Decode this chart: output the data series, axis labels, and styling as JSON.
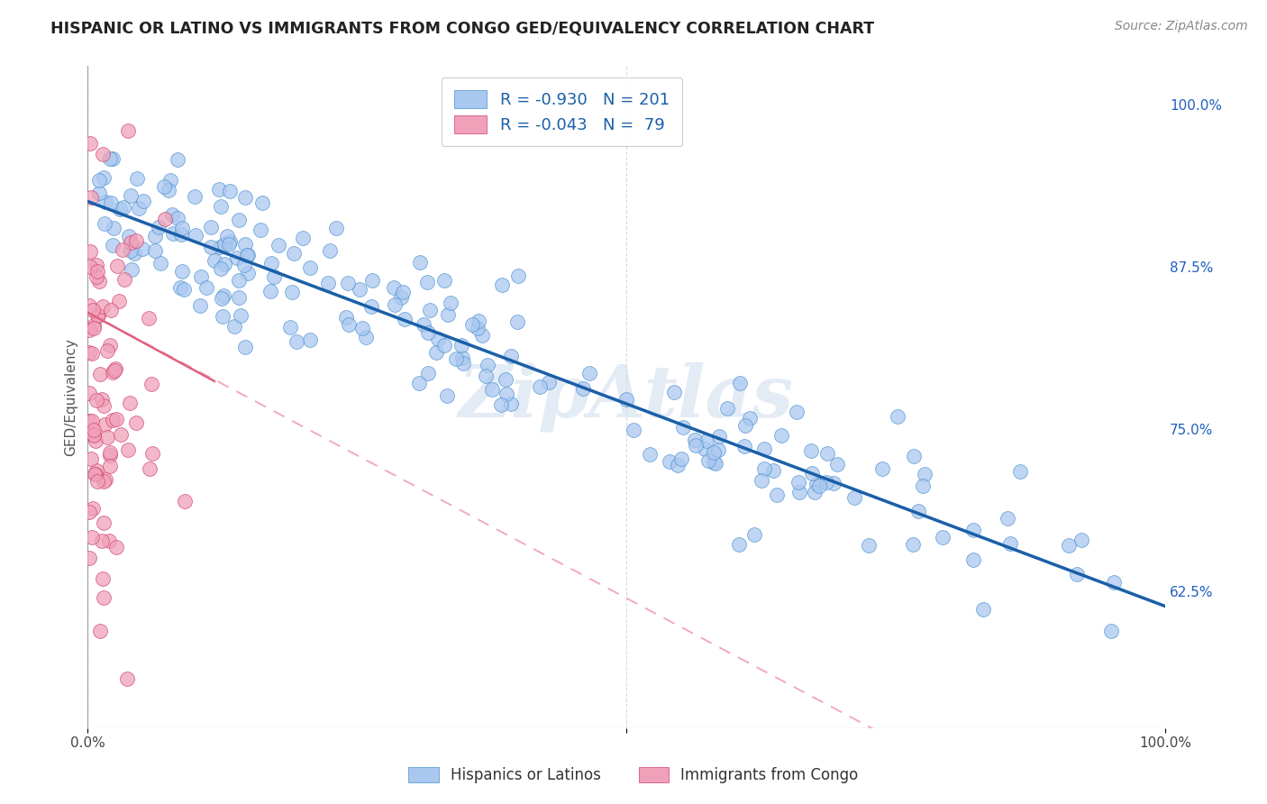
{
  "title": "HISPANIC OR LATINO VS IMMIGRANTS FROM CONGO GED/EQUIVALENCY CORRELATION CHART",
  "source": "Source: ZipAtlas.com",
  "ylabel": "GED/Equivalency",
  "legend_entries": [
    {
      "label": "Hispanics or Latinos",
      "color": "#a8c8f0",
      "edge": "#4a90d0",
      "R": "-0.930",
      "N": "201"
    },
    {
      "label": "Immigrants from Congo",
      "color": "#f0a0b8",
      "edge": "#d04070",
      "R": "-0.043",
      "N": " 79"
    }
  ],
  "right_yticks": [
    0.625,
    0.75,
    0.875,
    1.0
  ],
  "right_yticklabels": [
    "62.5%",
    "75.0%",
    "87.5%",
    "100.0%"
  ],
  "blue_scatter_color": "#aac8f0",
  "blue_scatter_edge": "#4a90d0",
  "pink_scatter_color": "#f0a0b8",
  "pink_scatter_edge": "#d04070",
  "blue_line_color": "#1a5fa8",
  "pink_solid_color": "#e06080",
  "pink_dash_color": "#f0a0b8",
  "watermark": "ZipAtlas",
  "watermark_color": "#c8d8ec",
  "background_color": "#ffffff",
  "grid_color": "#cccccc",
  "ylim_min": 0.52,
  "ylim_max": 1.03,
  "xlim_min": 0.0,
  "xlim_max": 1.0
}
